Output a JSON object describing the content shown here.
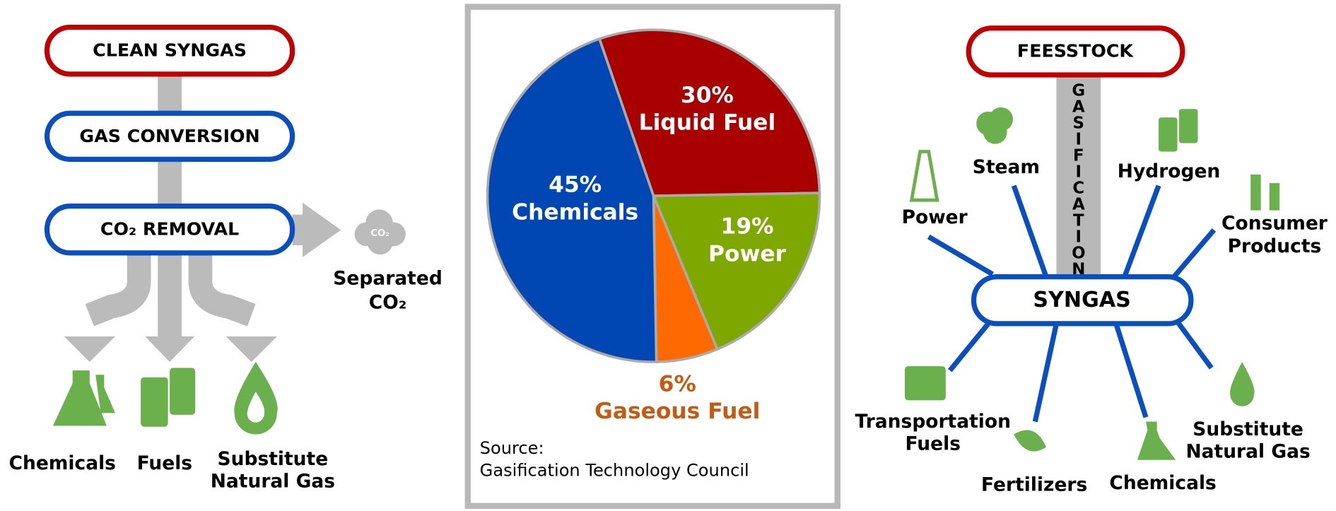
{
  "left": {
    "nodes": [
      "CLEAN SYNGAS",
      "GAS CONVERSION",
      "CO₂ REMOVAL"
    ],
    "cloud_label": "CO₂",
    "byproduct": [
      "Separated",
      "CO₂"
    ],
    "outputs": [
      [
        "Chemicals"
      ],
      [
        "Fuels"
      ],
      [
        "Substitute",
        "Natural Gas"
      ]
    ]
  },
  "chart_data": {
    "type": "pie",
    "categories": [
      "Liquid Fuel",
      "Power",
      "Gaseous Fuel",
      "Chemicals"
    ],
    "values": [
      30,
      19,
      6,
      45
    ],
    "value_labels": [
      "30%",
      "19%",
      "6%",
      "45%"
    ],
    "colors": [
      "#a80000",
      "#7ea700",
      "#ff6a00",
      "#0047b3"
    ],
    "source": [
      "Source:",
      "Gasification Technology Council"
    ]
  },
  "right": {
    "feedstock": "FEESSTOCK",
    "process": "GASIFICATION",
    "hub": "SYNGAS",
    "products": [
      [
        "Power"
      ],
      [
        "Steam"
      ],
      [
        "Hydrogen"
      ],
      [
        "Consumer",
        "Products"
      ],
      [
        "Transportation",
        "Fuels"
      ],
      [
        "Fertilizers"
      ],
      [
        "Chemicals"
      ],
      [
        "Substitute",
        "Natural Gas"
      ]
    ]
  }
}
